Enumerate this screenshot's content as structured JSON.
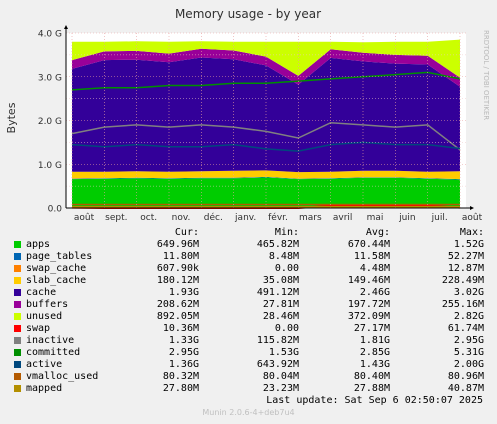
{
  "title": "Memory usage - by year",
  "ylabel": "Bytes",
  "side_label": "RRDTOOL / TOBI OETIKER",
  "columns": [
    "Cur:",
    "Min:",
    "Avg:",
    "Max:"
  ],
  "legend": [
    {
      "name": "apps",
      "color": "#00cc00",
      "cur": "649.96M",
      "min": "465.82M",
      "avg": "670.44M",
      "max": "1.52G"
    },
    {
      "name": "page_tables",
      "color": "#0066b3",
      "cur": "11.80M",
      "min": "8.48M",
      "avg": "11.58M",
      "max": "52.27M"
    },
    {
      "name": "swap_cache",
      "color": "#ff8000",
      "cur": "607.90k",
      "min": "0.00",
      "avg": "4.48M",
      "max": "12.87M"
    },
    {
      "name": "slab_cache",
      "color": "#ffcc00",
      "cur": "180.12M",
      "min": "35.08M",
      "avg": "149.46M",
      "max": "228.49M"
    },
    {
      "name": "cache",
      "color": "#330099",
      "cur": "1.93G",
      "min": "491.12M",
      "avg": "2.46G",
      "max": "3.02G"
    },
    {
      "name": "buffers",
      "color": "#990099",
      "cur": "208.62M",
      "min": "27.81M",
      "avg": "197.72M",
      "max": "255.16M"
    },
    {
      "name": "unused",
      "color": "#ccff00",
      "cur": "892.05M",
      "min": "28.46M",
      "avg": "372.09M",
      "max": "2.82G"
    },
    {
      "name": "swap",
      "color": "#ff0000",
      "cur": "10.36M",
      "min": "0.00",
      "avg": "27.17M",
      "max": "61.74M"
    },
    {
      "name": "inactive",
      "color": "#808080",
      "cur": "1.33G",
      "min": "115.82M",
      "avg": "1.81G",
      "max": "2.95G"
    },
    {
      "name": "committed",
      "color": "#008f00",
      "cur": "2.95G",
      "min": "1.53G",
      "avg": "2.85G",
      "max": "5.31G"
    },
    {
      "name": "active",
      "color": "#00487d",
      "cur": "1.36G",
      "min": "643.92M",
      "avg": "1.43G",
      "max": "2.00G"
    },
    {
      "name": "vmalloc_used",
      "color": "#b35a00",
      "cur": "80.32M",
      "min": "80.04M",
      "avg": "80.40M",
      "max": "80.96M"
    },
    {
      "name": "mapped",
      "color": "#b38f00",
      "cur": "27.80M",
      "min": "23.23M",
      "avg": "27.88M",
      "max": "40.87M"
    }
  ],
  "last_update": "Last update:  Sat Sep  6 02:50:07 2025",
  "munin_version": "Munin 2.0.6-4+deb7u4",
  "chart_data": {
    "type": "area",
    "title": "Memory usage - by year",
    "ylabel": "Bytes",
    "ylim": [
      0,
      4.0
    ],
    "y_unit": "G",
    "yticks": [
      "0.0",
      "1.0 G",
      "2.0 G",
      "3.0 G",
      "4.0 G"
    ],
    "categories": [
      "août",
      "sept.",
      "oct.",
      "nov.",
      "déc.",
      "janv.",
      "févr.",
      "mars",
      "avril",
      "mai",
      "juin",
      "juil.",
      "août"
    ],
    "grid": true,
    "stacked_series": [
      {
        "name": "apps",
        "values": [
          0.66,
          0.67,
          0.68,
          0.67,
          0.68,
          0.68,
          0.7,
          0.66,
          0.67,
          0.69,
          0.69,
          0.67,
          0.65
        ]
      },
      {
        "name": "page_tables",
        "values": [
          0.01,
          0.01,
          0.01,
          0.01,
          0.01,
          0.01,
          0.01,
          0.01,
          0.01,
          0.01,
          0.01,
          0.01,
          0.01
        ]
      },
      {
        "name": "swap_cache",
        "values": [
          0.01,
          0.0,
          0.0,
          0.0,
          0.0,
          0.0,
          0.0,
          0.0,
          0.0,
          0.0,
          0.0,
          0.0,
          0.0
        ]
      },
      {
        "name": "slab_cache",
        "values": [
          0.15,
          0.15,
          0.15,
          0.15,
          0.15,
          0.16,
          0.15,
          0.15,
          0.15,
          0.15,
          0.15,
          0.15,
          0.18
        ]
      },
      {
        "name": "cache",
        "values": [
          2.35,
          2.55,
          2.55,
          2.5,
          2.6,
          2.55,
          2.4,
          2.0,
          2.6,
          2.5,
          2.45,
          2.45,
          1.93
        ]
      },
      {
        "name": "buffers",
        "values": [
          0.2,
          0.2,
          0.2,
          0.2,
          0.2,
          0.2,
          0.2,
          0.2,
          0.2,
          0.2,
          0.2,
          0.2,
          0.21
        ]
      },
      {
        "name": "unused",
        "values": [
          0.42,
          0.22,
          0.22,
          0.27,
          0.17,
          0.2,
          0.34,
          0.78,
          0.17,
          0.24,
          0.3,
          0.32,
          0.87
        ]
      }
    ],
    "line_series": [
      {
        "name": "swap",
        "values": [
          0.01,
          0.0,
          0.0,
          0.0,
          0.0,
          0.0,
          0.0,
          0.0,
          0.05,
          0.05,
          0.05,
          0.05,
          0.01
        ]
      },
      {
        "name": "inactive",
        "values": [
          1.7,
          1.85,
          1.9,
          1.85,
          1.9,
          1.85,
          1.75,
          1.6,
          1.95,
          1.9,
          1.85,
          1.9,
          1.33
        ]
      },
      {
        "name": "committed",
        "values": [
          2.7,
          2.75,
          2.75,
          2.8,
          2.8,
          2.85,
          2.85,
          2.9,
          2.95,
          3.0,
          3.05,
          3.1,
          2.95
        ]
      },
      {
        "name": "active",
        "values": [
          1.45,
          1.4,
          1.45,
          1.4,
          1.4,
          1.45,
          1.35,
          1.3,
          1.45,
          1.5,
          1.45,
          1.45,
          1.36
        ]
      },
      {
        "name": "vmalloc_used",
        "values": [
          0.08,
          0.08,
          0.08,
          0.08,
          0.08,
          0.08,
          0.08,
          0.08,
          0.08,
          0.08,
          0.08,
          0.08,
          0.08
        ]
      },
      {
        "name": "mapped",
        "values": [
          0.03,
          0.03,
          0.03,
          0.03,
          0.03,
          0.03,
          0.03,
          0.03,
          0.03,
          0.03,
          0.03,
          0.03,
          0.03
        ]
      }
    ]
  }
}
